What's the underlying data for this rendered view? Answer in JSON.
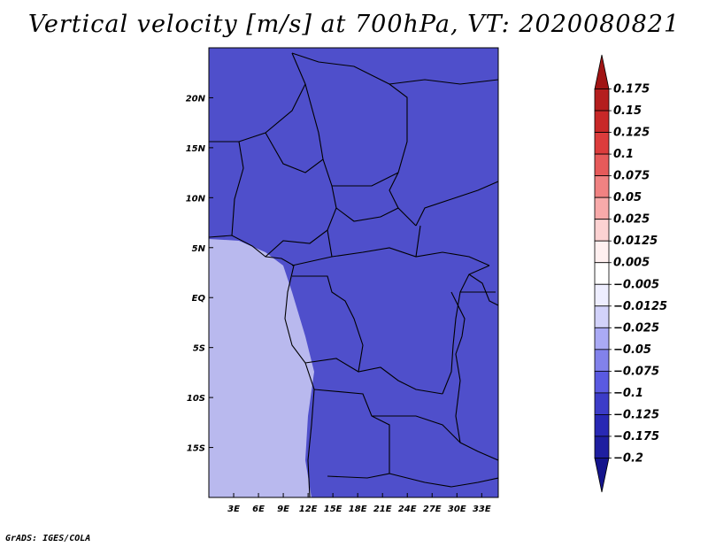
{
  "title": "Vertical velocity [m/s] at 700hPa, VT: 2020080821",
  "credit": "GrADS: IGES/COLA",
  "map": {
    "region": "Central Africa",
    "lat_labels": [
      "20N",
      "15N",
      "10N",
      "5N",
      "EQ",
      "5S",
      "10S",
      "15S"
    ],
    "lat_values": [
      20,
      15,
      10,
      5,
      0,
      -5,
      -10,
      -15
    ],
    "lon_labels": [
      "3E",
      "6E",
      "9E",
      "12E",
      "15E",
      "18E",
      "21E",
      "24E",
      "27E",
      "30E",
      "33E"
    ],
    "lon_values": [
      3,
      6,
      9,
      12,
      15,
      18,
      21,
      24,
      27,
      30,
      33
    ],
    "lon_range": [
      0,
      35
    ],
    "lat_range": [
      -20,
      25
    ]
  },
  "colorbar": {
    "labels": [
      "0.175",
      "0.15",
      "0.125",
      "0.1",
      "0.075",
      "0.05",
      "0.025",
      "0.0125",
      "0.005",
      "−0.005",
      "−0.0125",
      "−0.025",
      "−0.05",
      "−0.075",
      "−0.1",
      "−0.125",
      "−0.175",
      "−0.2"
    ],
    "colors": [
      "#a01414",
      "#b41e1e",
      "#c82828",
      "#dc3c3c",
      "#e65a5a",
      "#f08282",
      "#f8aaaa",
      "#fcd2d2",
      "#fff0f0",
      "#ffffff",
      "#eeeeff",
      "#d2d2fa",
      "#aaaaf5",
      "#8282eb",
      "#5a5ae1",
      "#3c3cc8",
      "#2828b4",
      "#1e1ea0",
      "#14148c"
    ]
  }
}
